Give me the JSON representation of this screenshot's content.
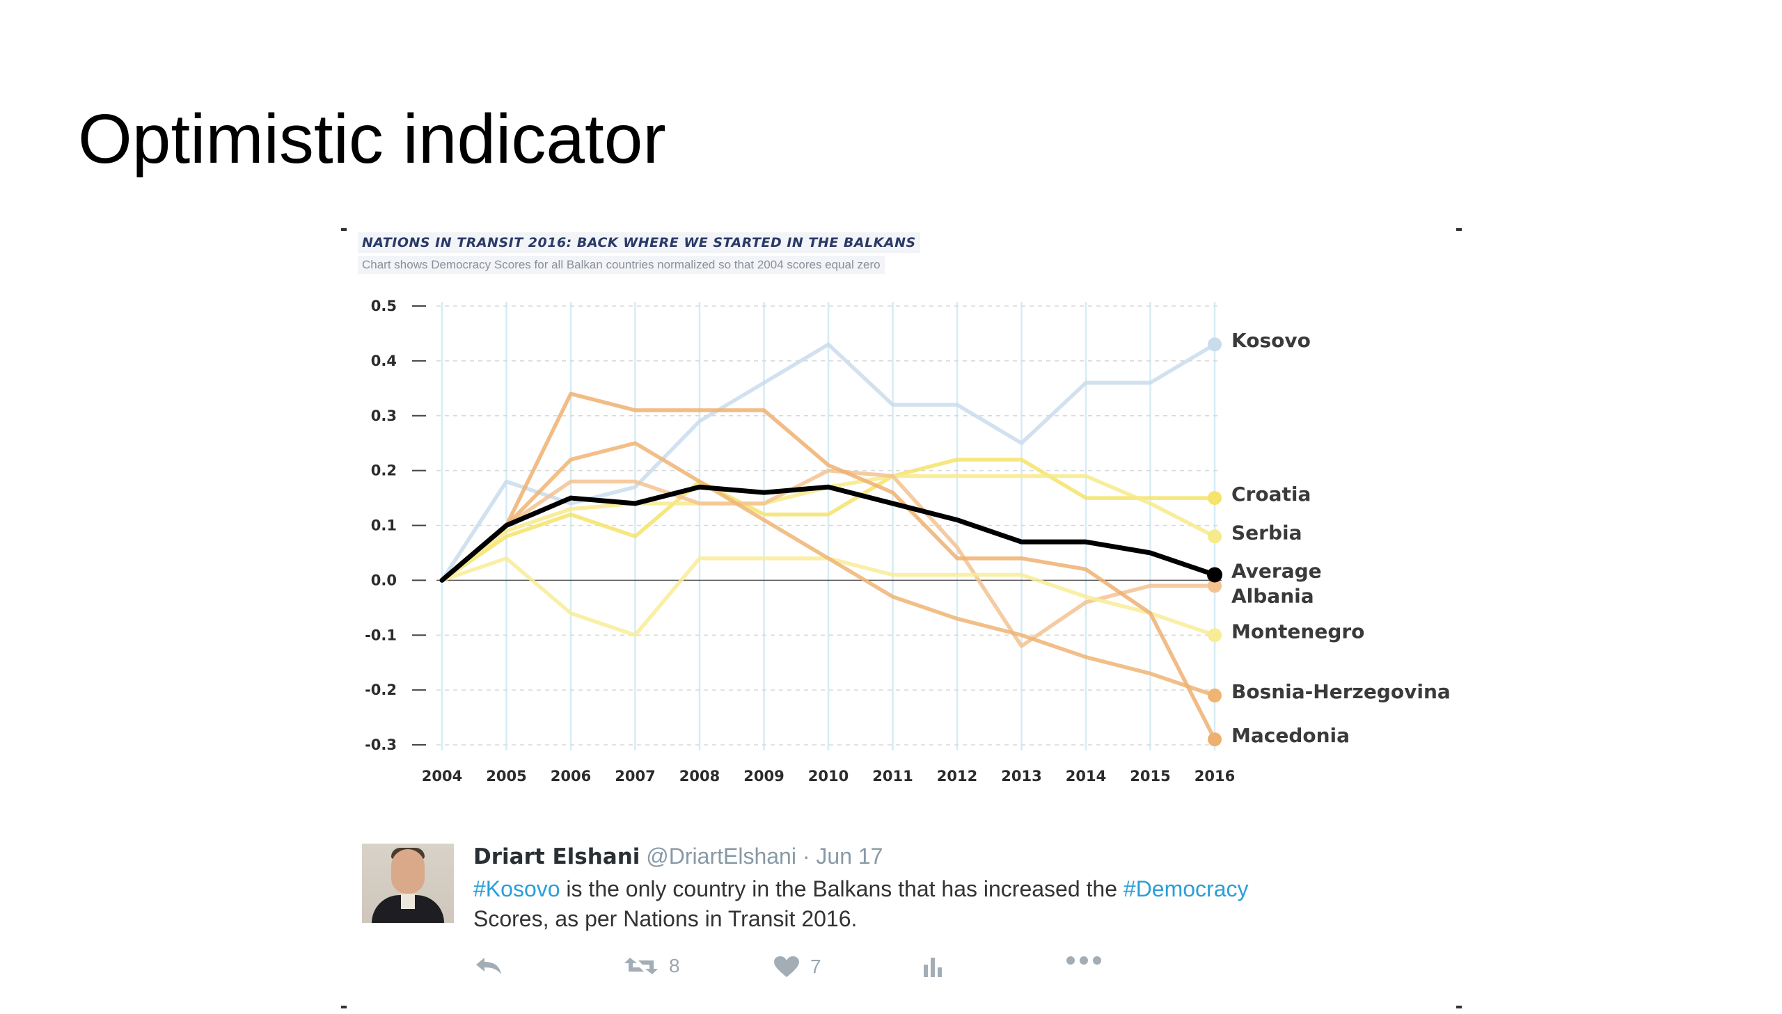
{
  "slide": {
    "title": "Optimistic indicator"
  },
  "chart_data": {
    "type": "line",
    "title": "NATIONS IN TRANSIT 2016: BACK WHERE WE STARTED IN THE BALKANS",
    "subtitle": "Chart shows Democracy Scores for all Balkan countries normalized so that 2004 scores equal zero",
    "x": [
      "2004",
      "2005",
      "2006",
      "2007",
      "2008",
      "2009",
      "2010",
      "2011",
      "2012",
      "2013",
      "2014",
      "2015",
      "2016"
    ],
    "y_ticks": [
      "0.5",
      "0.4",
      "0.3",
      "0.2",
      "0.1",
      "0.0",
      "-0.1",
      "-0.2",
      "-0.3"
    ],
    "ylim": [
      -0.3,
      0.5
    ],
    "grid": true,
    "legend": "end-of-line labels",
    "series": [
      {
        "name": "Kosovo",
        "color": "#c9dcec",
        "values": [
          0,
          0.18,
          0.14,
          0.17,
          0.29,
          0.36,
          0.43,
          0.32,
          0.32,
          0.25,
          0.36,
          0.36,
          0.43
        ]
      },
      {
        "name": "Croatia",
        "color": "#f5e36a",
        "values": [
          0,
          0.08,
          0.12,
          0.08,
          0.18,
          0.12,
          0.12,
          0.19,
          0.22,
          0.22,
          0.15,
          0.15,
          0.15
        ]
      },
      {
        "name": "Serbia",
        "color": "#f6ea8a",
        "values": [
          0,
          0.09,
          0.13,
          0.14,
          0.14,
          0.14,
          0.17,
          0.19,
          0.19,
          0.19,
          0.19,
          0.14,
          0.08
        ]
      },
      {
        "name": "Albania",
        "color": "#f3c290",
        "values": [
          0,
          0.1,
          0.18,
          0.18,
          0.14,
          0.14,
          0.2,
          0.19,
          0.06,
          -0.12,
          -0.04,
          -0.01,
          -0.01
        ]
      },
      {
        "name": "Montenegro",
        "color": "#f8ec96",
        "values": [
          0,
          0.04,
          -0.06,
          -0.1,
          0.04,
          0.04,
          0.04,
          0.01,
          0.01,
          0.01,
          -0.03,
          -0.06,
          -0.1
        ]
      },
      {
        "name": "Bosnia-Herzegovina",
        "color": "#efb472",
        "values": [
          0,
          0.1,
          0.22,
          0.25,
          0.18,
          0.11,
          0.04,
          -0.03,
          -0.07,
          -0.1,
          -0.14,
          -0.17,
          -0.21
        ]
      },
      {
        "name": "Macedonia",
        "color": "#eeb070",
        "values": [
          0,
          0.1,
          0.34,
          0.31,
          0.31,
          0.31,
          0.21,
          0.16,
          0.04,
          0.04,
          0.02,
          -0.06,
          -0.29
        ]
      },
      {
        "name": "Average",
        "color": "#000000",
        "values": [
          0,
          0.1,
          0.15,
          0.14,
          0.17,
          0.16,
          0.17,
          0.14,
          0.11,
          0.07,
          0.07,
          0.05,
          0.01
        ]
      }
    ],
    "label_order": [
      "Kosovo",
      "Croatia",
      "Serbia",
      "Average",
      "Albania",
      "Montenegro",
      "Bosnia-Herzegovina",
      "Macedonia"
    ]
  },
  "tweet": {
    "name": "Driart Elshani",
    "handle": "@DriartElshani",
    "separator": "·",
    "date": "Jun 17",
    "text_hashtag1": "#Kosovo",
    "text_part1": " is the only country in the Balkans that has increased the ",
    "text_hashtag2": "#Democracy",
    "text_part2": " Scores, as per Nations in Transit 2016.",
    "retweets": "8",
    "likes": "7",
    "icons": [
      "reply-icon",
      "retweet-icon",
      "heart-icon",
      "analytics-icon",
      "more-icon"
    ]
  }
}
